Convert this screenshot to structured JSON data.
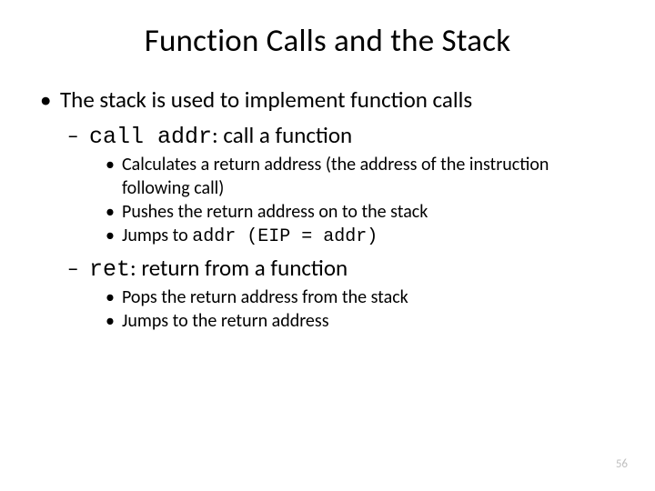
{
  "title": "Function Calls and the Stack",
  "l1": "The stack is used to implement function calls",
  "call": {
    "code": "call addr",
    "rest": ": call a function",
    "b1a": "Calculates a return address (the address of the instruction",
    "b1b": "following call)",
    "b2": "Pushes the return address on to the stack",
    "b3_pre": "Jumps to ",
    "b3_code": "addr (EIP = addr)"
  },
  "ret": {
    "code": "ret",
    "rest": ": return from a function",
    "b1": "Pops the return address from the stack",
    "b2": "Jumps to the return address"
  },
  "page": "56"
}
